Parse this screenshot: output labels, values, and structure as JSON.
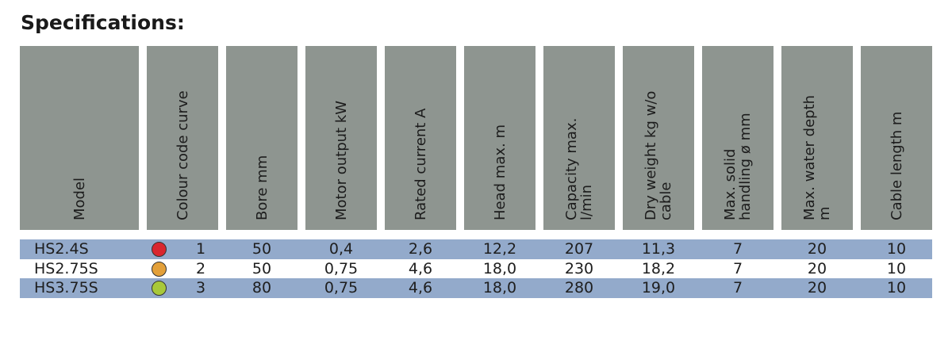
{
  "title": "Specifications:",
  "columns": [
    "Model",
    "Colour code curve",
    "Bore mm",
    "Motor output kW",
    "Rated current A",
    "Head max. m",
    "Capacity max.\nl/min",
    "Dry weight kg w/o\ncable",
    "Max. solid\nhandling ø mm",
    "Max. water depth\nm",
    "Cable length m"
  ],
  "rows": [
    {
      "model": "HS2.4S",
      "colour": "#d9262e",
      "curve": "1",
      "bore": "50",
      "motor": "0,4",
      "current": "2,6",
      "head": "12,2",
      "capacity": "207",
      "weight": "11,3",
      "solid": "7",
      "depth": "20",
      "cable": "10"
    },
    {
      "model": "HS2.75S",
      "colour": "#e3a03a",
      "curve": "2",
      "bore": "50",
      "motor": "0,75",
      "current": "4,6",
      "head": "18,0",
      "capacity": "230",
      "weight": "18,2",
      "solid": "7",
      "depth": "20",
      "cable": "10"
    },
    {
      "model": "HS3.75S",
      "colour": "#a8c83a",
      "curve": "3",
      "bore": "80",
      "motor": "0,75",
      "current": "4,6",
      "head": "18,0",
      "capacity": "280",
      "weight": "19,0",
      "solid": "7",
      "depth": "20",
      "cable": "10"
    }
  ],
  "colors": {
    "header_bg": "#8e9590",
    "row_shade": "#93aacb"
  }
}
